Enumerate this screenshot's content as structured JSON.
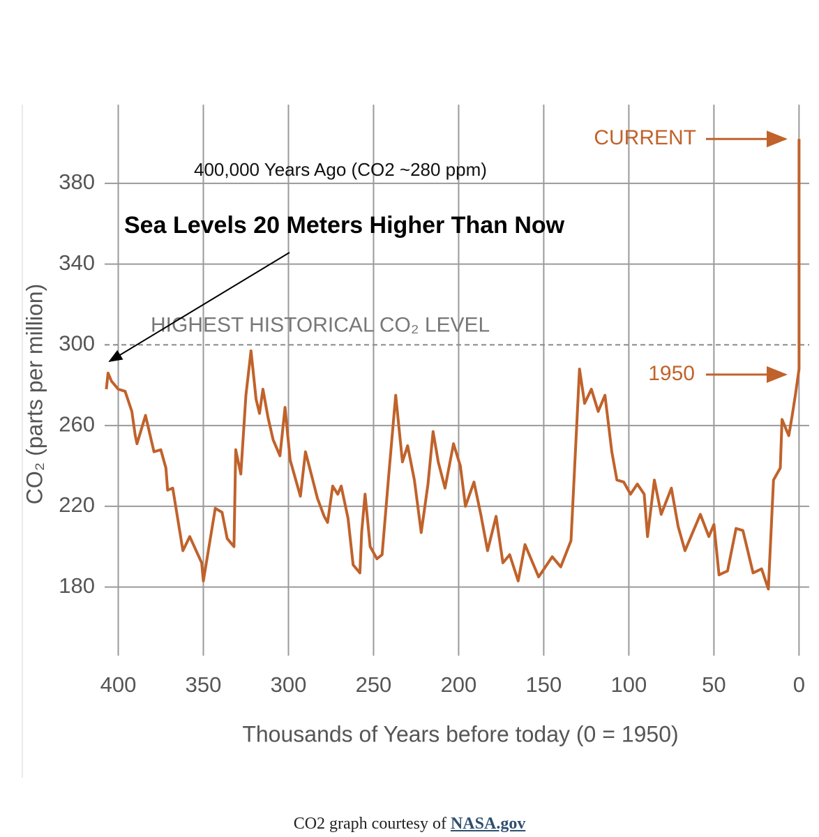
{
  "chart_data": {
    "type": "line",
    "x_label": "Thousands of Years before today (0 = 1950)",
    "y_label": "CO₂ (parts per million)",
    "xlim": [
      408,
      -6
    ],
    "xticks": [
      400,
      350,
      300,
      250,
      200,
      150,
      100,
      50,
      0
    ],
    "ylim": [
      146,
      419
    ],
    "yticks": [
      180,
      220,
      260,
      300,
      340,
      380
    ],
    "grid": true,
    "reference_line": {
      "value": 300,
      "label": "HIGHEST HISTORICAL CO₂ LEVEL"
    },
    "annotations": [
      "400,000 Years Ago (CO2 ~280 ppm)",
      "Sea Levels 20 Meters Higher Than Now",
      "CURRENT",
      "1950"
    ],
    "series": [
      {
        "color": "#c0622b",
        "x": [
          407,
          406,
          404,
          400,
          396,
          392,
          390,
          389,
          384,
          379,
          375,
          372,
          371,
          368,
          362,
          358,
          351,
          350,
          343,
          339,
          336,
          332,
          331,
          328,
          325,
          322,
          319,
          317,
          315,
          312,
          309,
          305,
          302,
          299,
          296,
          293,
          290,
          286,
          283,
          279,
          277,
          274,
          271,
          269,
          265,
          262,
          258,
          257,
          255,
          252,
          248,
          245,
          241,
          237,
          233,
          230,
          226,
          222,
          218,
          215,
          212,
          208,
          203,
          199,
          196,
          191,
          187,
          183,
          178,
          174,
          170,
          165,
          161,
          153,
          145,
          140,
          134,
          129,
          126,
          122,
          118,
          114,
          110,
          107,
          103,
          99,
          95,
          91,
          89,
          85,
          81,
          75,
          71,
          67,
          58,
          53,
          50,
          47,
          42,
          37,
          33,
          27,
          22,
          18,
          15,
          11,
          10,
          6,
          4,
          2,
          0,
          0
        ],
        "values": [
          278,
          286,
          282,
          278,
          277,
          267,
          255,
          251,
          265,
          247,
          248,
          239,
          228,
          229,
          198,
          205,
          192,
          183,
          219,
          217,
          204,
          200,
          248,
          236,
          275,
          297,
          273,
          266,
          278,
          264,
          253,
          245,
          269,
          243,
          234,
          225,
          247,
          234,
          224,
          215,
          212,
          230,
          226,
          230,
          214,
          191,
          187,
          207,
          226,
          200,
          194,
          196,
          236,
          275,
          242,
          250,
          233,
          207,
          231,
          257,
          242,
          229,
          251,
          240,
          220,
          232,
          216,
          198,
          215,
          192,
          196,
          183,
          201,
          185,
          195,
          190,
          203,
          288,
          271,
          278,
          267,
          275,
          247,
          233,
          232,
          226,
          231,
          226,
          205,
          233,
          216,
          229,
          210,
          198,
          216,
          205,
          211,
          186,
          188,
          209,
          208,
          187,
          189,
          179,
          233,
          239,
          263,
          255,
          265,
          276,
          288,
          402
        ]
      }
    ]
  },
  "caption": {
    "text": "CO2 graph courtesy of",
    "link": "NASA.gov"
  }
}
